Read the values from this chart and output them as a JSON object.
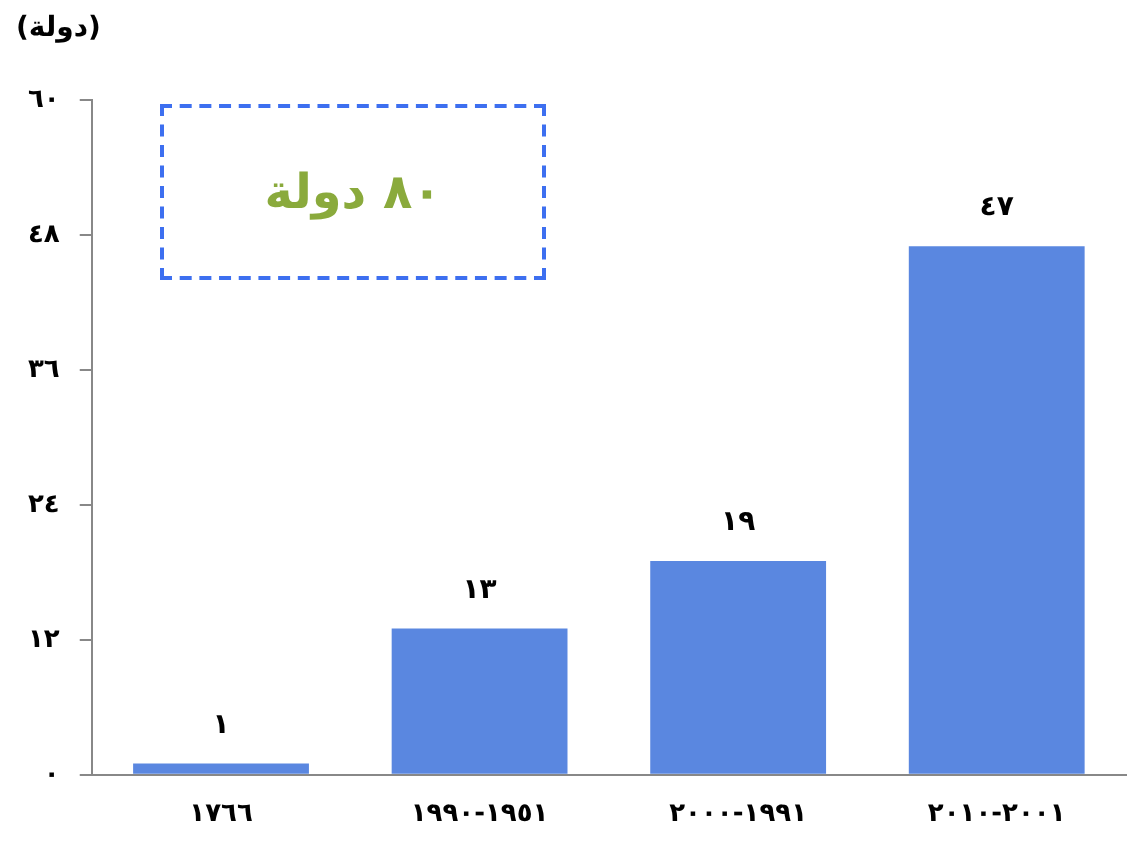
{
  "chart_data": {
    "type": "bar",
    "ylabel": "(دولة)",
    "categories": [
      "١٧٦٦",
      "١٩٥١-١٩٩٠",
      "١٩٩١-٢٠٠٠",
      "٢٠٠١-٢٠١٠"
    ],
    "values": [
      1,
      13,
      19,
      47
    ],
    "value_labels": [
      "١",
      "١٣",
      "١٩",
      "٤٧"
    ],
    "color": "#5a87e0",
    "ylim": [
      0,
      60
    ],
    "yticks": [
      {
        "value": 0,
        "label": "٠"
      },
      {
        "value": 12,
        "label": "١٢"
      },
      {
        "value": 24,
        "label": "٢٤"
      },
      {
        "value": 36,
        "label": "٣٦"
      },
      {
        "value": 48,
        "label": "٤٨"
      },
      {
        "value": 60,
        "label": "٦٠"
      }
    ],
    "grid": false,
    "legend": false,
    "annotations": [
      "٨٠ دولة"
    ]
  }
}
